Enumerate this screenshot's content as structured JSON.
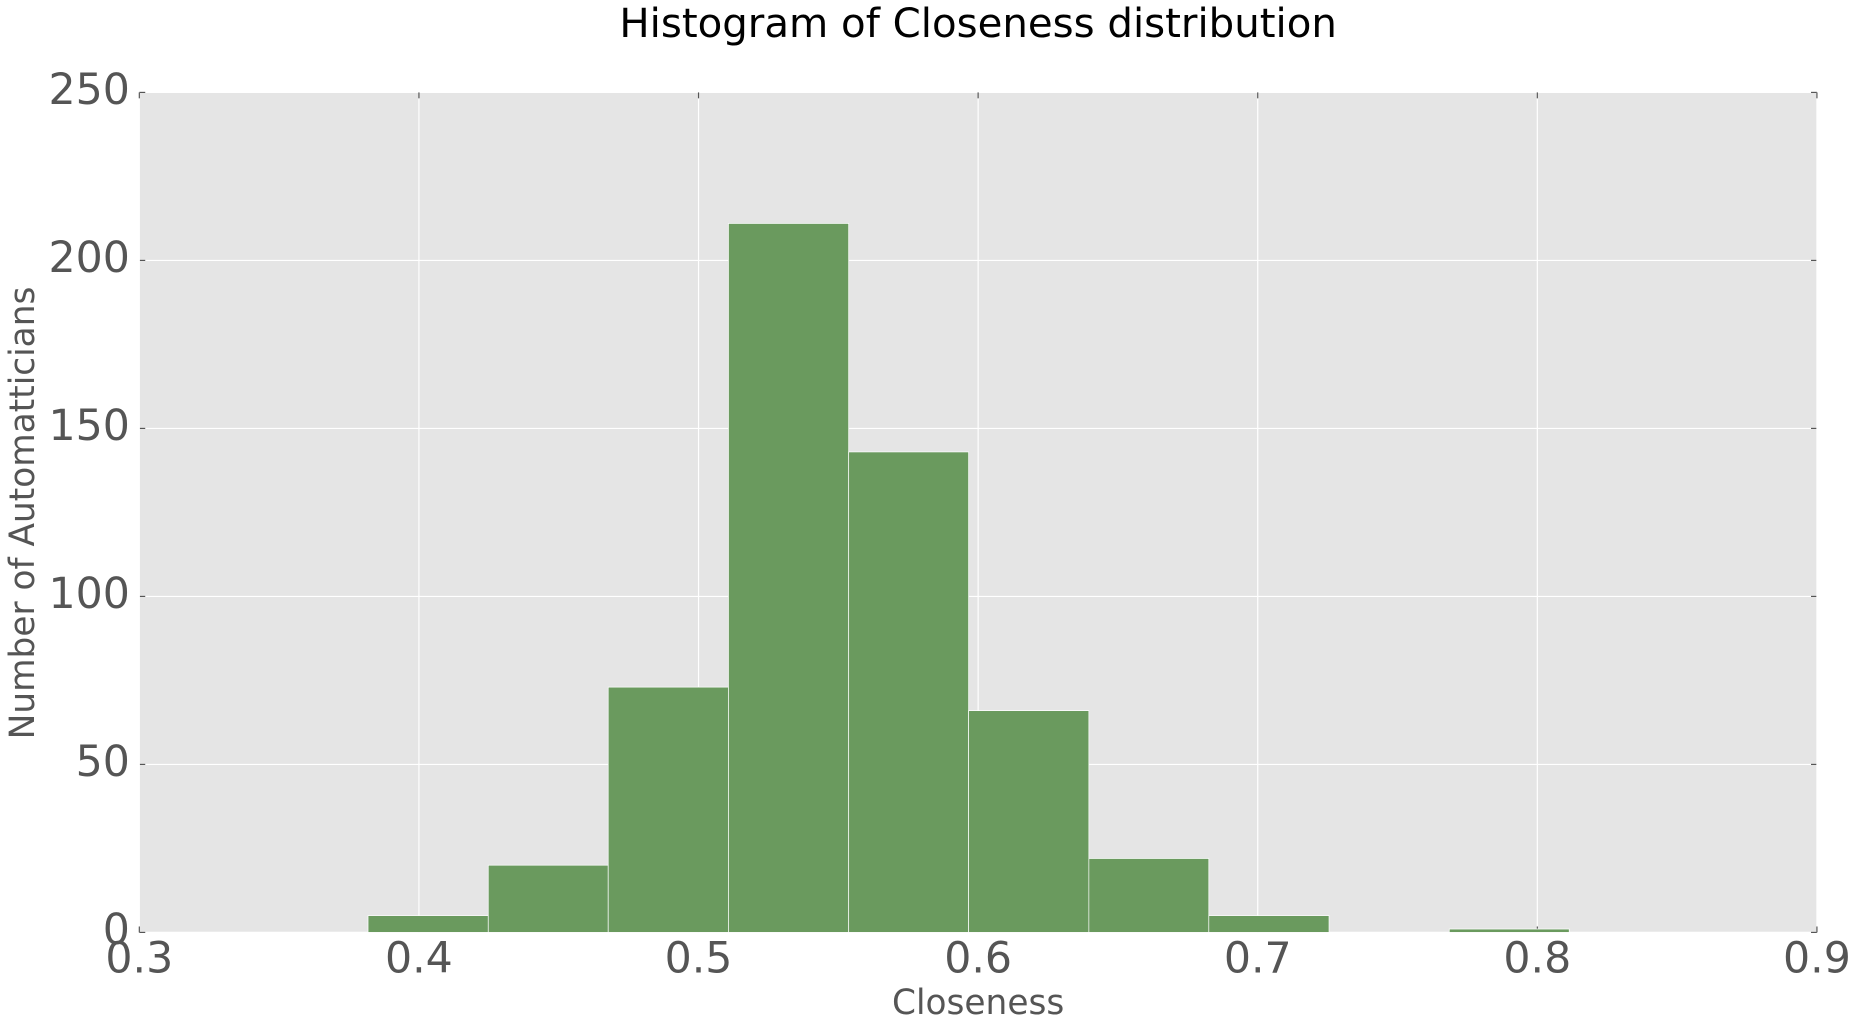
{
  "chart_data": {
    "type": "histogram",
    "title": "Histogram of Closeness distribution",
    "x_label": "Closeness",
    "y_label": "Number of Automatticians",
    "bins": [
      0.3818,
      0.4248,
      0.4677,
      0.5107,
      0.5537,
      0.5966,
      0.6396,
      0.6825,
      0.7255,
      0.7685,
      0.8114
    ],
    "counts": [
      5,
      20,
      73,
      211,
      143,
      66,
      22,
      5,
      0,
      1
    ],
    "color": "#6a9a5e",
    "xlim": [
      0.3,
      0.9
    ],
    "xticks": [
      0.3,
      0.4,
      0.5,
      0.6,
      0.7,
      0.8,
      0.9
    ],
    "ylim": [
      0,
      250
    ],
    "yticks": [
      0,
      50,
      100,
      150,
      200,
      250
    ],
    "grid": true
  }
}
